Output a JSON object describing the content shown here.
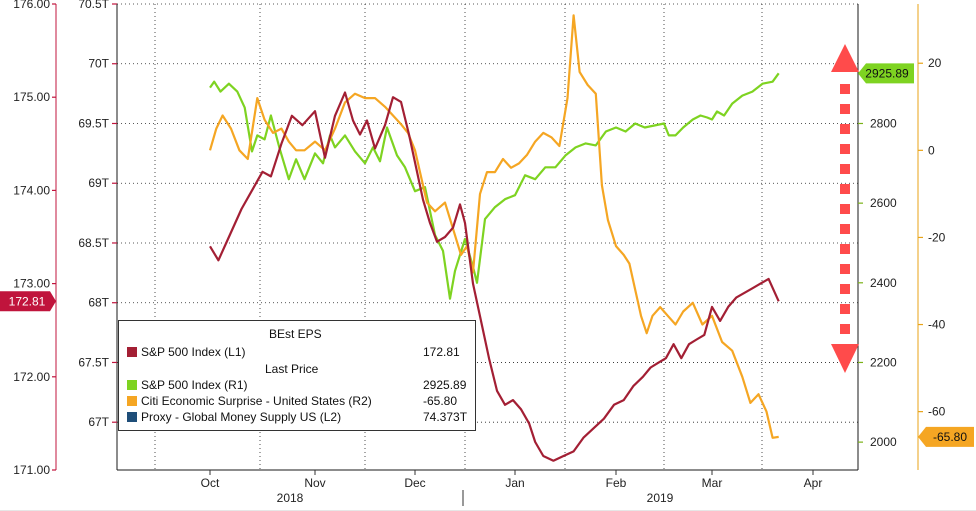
{
  "chart_data": {
    "type": "line",
    "x_axis": {
      "months": [
        "Oct",
        "Nov",
        "Dec",
        "Jan",
        "Feb",
        "Mar",
        "Apr"
      ],
      "years": [
        "2018",
        "2019"
      ]
    },
    "axes": {
      "eps": {
        "ticks": [
          "176.00",
          "175.00",
          "174.00",
          "173.00",
          "172.00",
          "171.00"
        ],
        "ylim": [
          171.0,
          176.0
        ],
        "color": "#c0143c"
      },
      "money_supply": {
        "ticks": [
          "70.5T",
          "70T",
          "69.5T",
          "69T",
          "68.5T",
          "68T",
          "67.5T",
          "67T"
        ],
        "ylim": [
          66.6,
          70.5
        ],
        "color": "#c0143c"
      },
      "sp500": {
        "ticks": [
          "2800",
          "2600",
          "2400",
          "2200",
          "2000"
        ],
        "ylim": [
          1930,
          3100
        ],
        "color": "#7ab317"
      },
      "surprise": {
        "ticks": [
          "20",
          "0",
          "-20",
          "-40",
          "-60"
        ],
        "ylim": [
          -73.4,
          33.6
        ],
        "color": "#e8a317"
      }
    },
    "tags": {
      "eps": "172.81",
      "sp500": "2925.89",
      "surprise": "-65.80"
    },
    "legend": {
      "header_eps": "BEst EPS",
      "header_price": "Last Price",
      "items": [
        {
          "name": "S&P 500 Index  (L1)",
          "value": "172.81",
          "color": "#a31f34"
        },
        {
          "name": "S&P 500 Index  (R1)",
          "value": "2925.89",
          "color": "#7ed321"
        },
        {
          "name": "Citi Economic Surprise - United States  (R2)",
          "value": "-65.80",
          "color": "#f5a623"
        },
        {
          "name": "Proxy - Global Money Supply US  (L2)",
          "value": "74.373T",
          "color": "#1f4e79"
        }
      ]
    },
    "series": [
      {
        "name": "S&P 500 Index (R1)",
        "axis": "sp500",
        "color": "#7ed321",
        "points": [
          [
            0,
            2890
          ],
          [
            0.04,
            2905
          ],
          [
            0.1,
            2880
          ],
          [
            0.18,
            2900
          ],
          [
            0.26,
            2880
          ],
          [
            0.33,
            2840
          ],
          [
            0.4,
            2730
          ],
          [
            0.45,
            2770
          ],
          [
            0.52,
            2760
          ],
          [
            0.58,
            2820
          ],
          [
            0.66,
            2740
          ],
          [
            0.75,
            2660
          ],
          [
            0.82,
            2710
          ],
          [
            0.9,
            2660
          ],
          [
            1.0,
            2725
          ],
          [
            1.08,
            2700
          ],
          [
            1.15,
            2770
          ],
          [
            1.2,
            2740
          ],
          [
            1.3,
            2770
          ],
          [
            1.4,
            2730
          ],
          [
            1.5,
            2700
          ],
          [
            1.58,
            2740
          ],
          [
            1.65,
            2705
          ],
          [
            1.72,
            2790
          ],
          [
            1.82,
            2720
          ],
          [
            1.9,
            2690
          ],
          [
            2.0,
            2630
          ],
          [
            2.1,
            2640
          ],
          [
            2.2,
            2520
          ],
          [
            2.28,
            2480
          ],
          [
            2.35,
            2360
          ],
          [
            2.4,
            2430
          ],
          [
            2.45,
            2470
          ],
          [
            2.5,
            2510
          ],
          [
            2.58,
            2440
          ],
          [
            2.62,
            2400
          ],
          [
            2.7,
            2560
          ],
          [
            2.8,
            2590
          ],
          [
            2.9,
            2610
          ],
          [
            3.0,
            2620
          ],
          [
            3.1,
            2670
          ],
          [
            3.2,
            2660
          ],
          [
            3.3,
            2690
          ],
          [
            3.4,
            2690
          ],
          [
            3.5,
            2720
          ],
          [
            3.6,
            2740
          ],
          [
            3.7,
            2750
          ],
          [
            3.8,
            2745
          ],
          [
            3.9,
            2780
          ],
          [
            4.0,
            2790
          ],
          [
            4.1,
            2780
          ],
          [
            4.2,
            2800
          ],
          [
            4.3,
            2790
          ],
          [
            4.4,
            2795
          ],
          [
            4.5,
            2800
          ],
          [
            4.55,
            2770
          ],
          [
            4.62,
            2770
          ],
          [
            4.7,
            2790
          ],
          [
            4.8,
            2810
          ],
          [
            4.88,
            2820
          ],
          [
            4.95,
            2815
          ],
          [
            5.0,
            2810
          ],
          [
            5.05,
            2830
          ],
          [
            5.12,
            2820
          ],
          [
            5.2,
            2850
          ],
          [
            5.3,
            2870
          ],
          [
            5.4,
            2880
          ],
          [
            5.5,
            2900
          ],
          [
            5.6,
            2905
          ],
          [
            5.66,
            2925.89
          ]
        ]
      },
      {
        "name": "Citi Economic Surprise - United States (R2)",
        "axis": "surprise",
        "color": "#f5a623",
        "points": [
          [
            0,
            0
          ],
          [
            0.06,
            5
          ],
          [
            0.12,
            8
          ],
          [
            0.2,
            5
          ],
          [
            0.28,
            0
          ],
          [
            0.36,
            -2
          ],
          [
            0.45,
            12
          ],
          [
            0.52,
            7
          ],
          [
            0.6,
            4
          ],
          [
            0.68,
            5
          ],
          [
            0.75,
            2
          ],
          [
            0.82,
            0
          ],
          [
            0.9,
            0
          ],
          [
            1.0,
            2
          ],
          [
            1.1,
            0
          ],
          [
            1.2,
            5
          ],
          [
            1.3,
            11
          ],
          [
            1.4,
            13
          ],
          [
            1.5,
            12
          ],
          [
            1.6,
            12
          ],
          [
            1.7,
            10
          ],
          [
            1.78,
            8
          ],
          [
            1.86,
            6
          ],
          [
            1.93,
            4
          ],
          [
            2.0,
            0
          ],
          [
            2.06,
            -6
          ],
          [
            2.12,
            -12
          ],
          [
            2.2,
            -14
          ],
          [
            2.3,
            -12
          ],
          [
            2.38,
            -18
          ],
          [
            2.46,
            -24
          ],
          [
            2.52,
            -22
          ],
          [
            2.58,
            -28
          ],
          [
            2.65,
            -10
          ],
          [
            2.72,
            -5
          ],
          [
            2.8,
            -5
          ],
          [
            2.88,
            -2
          ],
          [
            2.96,
            -4
          ],
          [
            3.04,
            -3
          ],
          [
            3.12,
            -1
          ],
          [
            3.2,
            2
          ],
          [
            3.28,
            4
          ],
          [
            3.36,
            3
          ],
          [
            3.44,
            1
          ],
          [
            3.52,
            12
          ],
          [
            3.58,
            31
          ],
          [
            3.64,
            18
          ],
          [
            3.72,
            15
          ],
          [
            3.8,
            13
          ],
          [
            3.86,
            -8
          ],
          [
            3.92,
            -16
          ],
          [
            4.0,
            -22
          ],
          [
            4.08,
            -24
          ],
          [
            4.14,
            -26
          ],
          [
            4.2,
            -32
          ],
          [
            4.26,
            -38
          ],
          [
            4.32,
            -42
          ],
          [
            4.38,
            -38
          ],
          [
            4.46,
            -36
          ],
          [
            4.54,
            -38
          ],
          [
            4.62,
            -40
          ],
          [
            4.7,
            -37
          ],
          [
            4.8,
            -35
          ],
          [
            4.9,
            -40
          ],
          [
            5.0,
            -38
          ],
          [
            5.1,
            -44
          ],
          [
            5.2,
            -46
          ],
          [
            5.3,
            -52
          ],
          [
            5.38,
            -58
          ],
          [
            5.46,
            -56
          ],
          [
            5.54,
            -60
          ],
          [
            5.6,
            -66
          ],
          [
            5.66,
            -65.8
          ]
        ]
      },
      {
        "name": "S&P 500 Index (L1)",
        "axis": "eps",
        "color": "#a31f34",
        "points": [
          [
            0,
            173.4
          ],
          [
            0.08,
            173.25
          ],
          [
            0.18,
            173.5
          ],
          [
            0.3,
            173.8
          ],
          [
            0.4,
            174.0
          ],
          [
            0.5,
            174.2
          ],
          [
            0.58,
            174.15
          ],
          [
            0.68,
            174.5
          ],
          [
            0.78,
            174.8
          ],
          [
            0.88,
            174.7
          ],
          [
            1.0,
            174.85
          ],
          [
            1.1,
            174.35
          ],
          [
            1.2,
            174.8
          ],
          [
            1.3,
            175.05
          ],
          [
            1.38,
            174.75
          ],
          [
            1.45,
            174.6
          ],
          [
            1.52,
            174.75
          ],
          [
            1.6,
            174.45
          ],
          [
            1.7,
            174.7
          ],
          [
            1.78,
            175.0
          ],
          [
            1.86,
            174.95
          ],
          [
            1.94,
            174.6
          ],
          [
            2.0,
            174.3
          ],
          [
            2.08,
            173.9
          ],
          [
            2.15,
            173.65
          ],
          [
            2.22,
            173.45
          ],
          [
            2.3,
            173.5
          ],
          [
            2.38,
            173.6
          ],
          [
            2.45,
            173.85
          ],
          [
            2.5,
            173.65
          ],
          [
            2.58,
            173.0
          ],
          [
            2.66,
            172.6
          ],
          [
            2.74,
            172.2
          ],
          [
            2.82,
            171.85
          ],
          [
            2.9,
            171.7
          ],
          [
            2.98,
            171.75
          ],
          [
            3.06,
            171.65
          ],
          [
            3.14,
            171.5
          ],
          [
            3.2,
            171.3
          ],
          [
            3.28,
            171.15
          ],
          [
            3.38,
            171.1
          ],
          [
            3.48,
            171.15
          ],
          [
            3.58,
            171.2
          ],
          [
            3.68,
            171.35
          ],
          [
            3.78,
            171.45
          ],
          [
            3.88,
            171.55
          ],
          [
            3.98,
            171.7
          ],
          [
            4.08,
            171.75
          ],
          [
            4.18,
            171.9
          ],
          [
            4.28,
            172.0
          ],
          [
            4.36,
            172.1
          ],
          [
            4.44,
            172.15
          ],
          [
            4.52,
            172.2
          ],
          [
            4.6,
            172.35
          ],
          [
            4.68,
            172.2
          ],
          [
            4.76,
            172.35
          ],
          [
            4.84,
            172.4
          ],
          [
            4.92,
            172.45
          ],
          [
            5.0,
            172.75
          ],
          [
            5.08,
            172.6
          ],
          [
            5.16,
            172.75
          ],
          [
            5.24,
            172.85
          ],
          [
            5.32,
            172.9
          ],
          [
            5.4,
            172.95
          ],
          [
            5.48,
            173.0
          ],
          [
            5.56,
            173.05
          ],
          [
            5.66,
            172.81
          ]
        ]
      }
    ]
  }
}
